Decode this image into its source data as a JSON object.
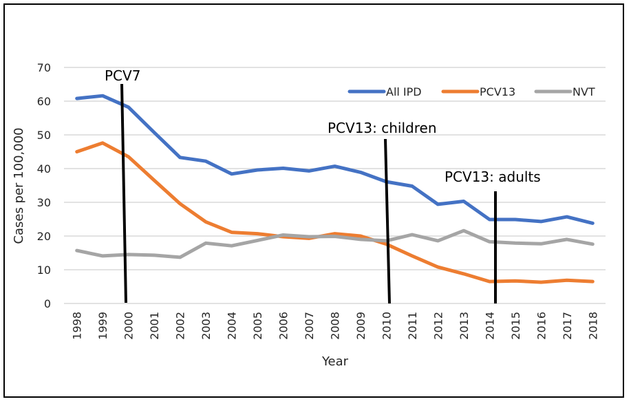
{
  "chart_data": {
    "type": "line",
    "title": "",
    "xlabel": "Year",
    "ylabel": "Cases per 100,000",
    "ylim": [
      0,
      70
    ],
    "yticks": [
      0,
      10,
      20,
      30,
      40,
      50,
      60,
      70
    ],
    "grid": true,
    "legend_position": "top-right",
    "categories": [
      "1998",
      "1999",
      "2000",
      "2001",
      "2002",
      "2003",
      "2004",
      "2005",
      "2006",
      "2007",
      "2008",
      "2009",
      "2010",
      "2011",
      "2012",
      "2013",
      "2014",
      "2015",
      "2016",
      "2017",
      "2018"
    ],
    "series": [
      {
        "name": "All IPD",
        "color": "#4472C4",
        "values": [
          60.8,
          61.6,
          58.2,
          50.7,
          43.3,
          42.2,
          38.4,
          39.6,
          40.1,
          39.3,
          40.7,
          38.9,
          36.1,
          34.8,
          29.4,
          30.3,
          24.9,
          24.9,
          24.3,
          25.7,
          23.8
        ]
      },
      {
        "name": "PCV13",
        "color": "#ED7D31",
        "values": [
          45.0,
          47.6,
          43.5,
          36.5,
          29.6,
          24.2,
          21.1,
          20.7,
          19.8,
          19.3,
          20.7,
          20.0,
          17.6,
          14.1,
          10.8,
          8.8,
          6.5,
          6.7,
          6.3,
          6.9,
          6.5
        ]
      },
      {
        "name": "NVT",
        "color": "#A5A5A5",
        "values": [
          15.7,
          14.1,
          14.5,
          14.3,
          13.7,
          17.9,
          17.1,
          18.7,
          20.3,
          19.8,
          19.9,
          19.0,
          18.6,
          20.4,
          18.6,
          21.6,
          18.3,
          17.9,
          17.7,
          19.0,
          17.6
        ]
      }
    ],
    "annotations": [
      {
        "label": "PCV7",
        "year_from": "2000",
        "year_to": "2000",
        "y_top": 65
      },
      {
        "label": "PCV13: children",
        "year_from": "2010",
        "year_to": "2010",
        "y_top": 49
      },
      {
        "label": "PCV13: adults",
        "year_from": "2014",
        "year_to": "2014",
        "y_top": 33.5
      }
    ]
  }
}
